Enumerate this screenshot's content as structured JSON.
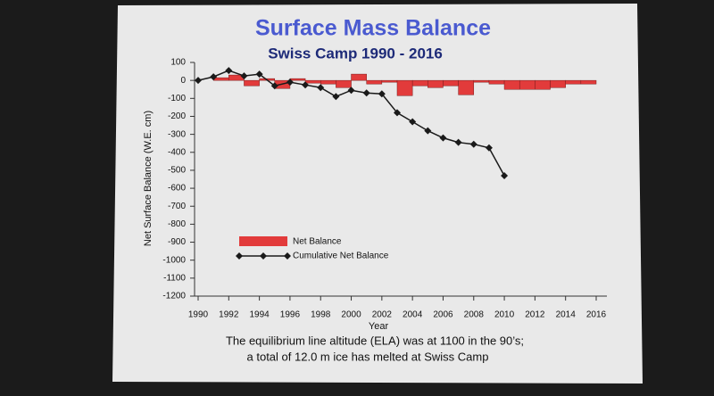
{
  "chart_data": {
    "type": "bar",
    "title": "Surface Mass Balance",
    "subtitle": "Swiss Camp 1990 - 2016",
    "x_label": "Year",
    "y_label": "Net Surface Balance (W.E. cm)",
    "annotations": [
      "The equilibrium line altitude (ELA) was at 1100 in the 90’s;",
      "a total of 12.0 m ice has melted at Swiss Camp"
    ],
    "x": [
      1990,
      1991,
      1992,
      1993,
      1994,
      1995,
      1996,
      1997,
      1998,
      1999,
      2000,
      2001,
      2002,
      2003,
      2004,
      2005,
      2006,
      2007,
      2008,
      2009,
      2010,
      2011,
      2012,
      2013,
      2014,
      2015
    ],
    "series": [
      {
        "name": "Net Balance",
        "type": "bar",
        "color": "#e23b3b",
        "values": [
          0,
          15,
          30,
          -30,
          10,
          -45,
          10,
          -15,
          -20,
          -40,
          35,
          -20,
          -10,
          -85,
          -30,
          -40,
          -30,
          -80,
          -10,
          -20,
          -50,
          -50,
          -50,
          -40,
          -20,
          -20
        ]
      },
      {
        "name": "Cumulative Net Balance",
        "type": "line",
        "color": "#1a1a1a",
        "values": [
          0,
          20,
          55,
          25,
          35,
          -30,
          -10,
          -25,
          -40,
          -90,
          -55,
          -70,
          -75,
          -180,
          -230,
          -280,
          -320,
          -345,
          -355,
          -375,
          -530,
          null,
          null,
          null,
          null,
          null
        ]
      }
    ],
    "xlim": [
      1990,
      2016
    ],
    "xticks": [
      1990,
      1992,
      1994,
      1996,
      1998,
      2000,
      2002,
      2004,
      2006,
      2008,
      2010,
      2012,
      2014,
      2016
    ],
    "ylim": [
      -1200,
      100
    ],
    "yticks": [
      100,
      0,
      -100,
      -200,
      -300,
      -400,
      -500,
      -600,
      -700,
      -800,
      -900,
      -1000,
      -1100,
      -1200
    ],
    "legend": "lower-left"
  }
}
